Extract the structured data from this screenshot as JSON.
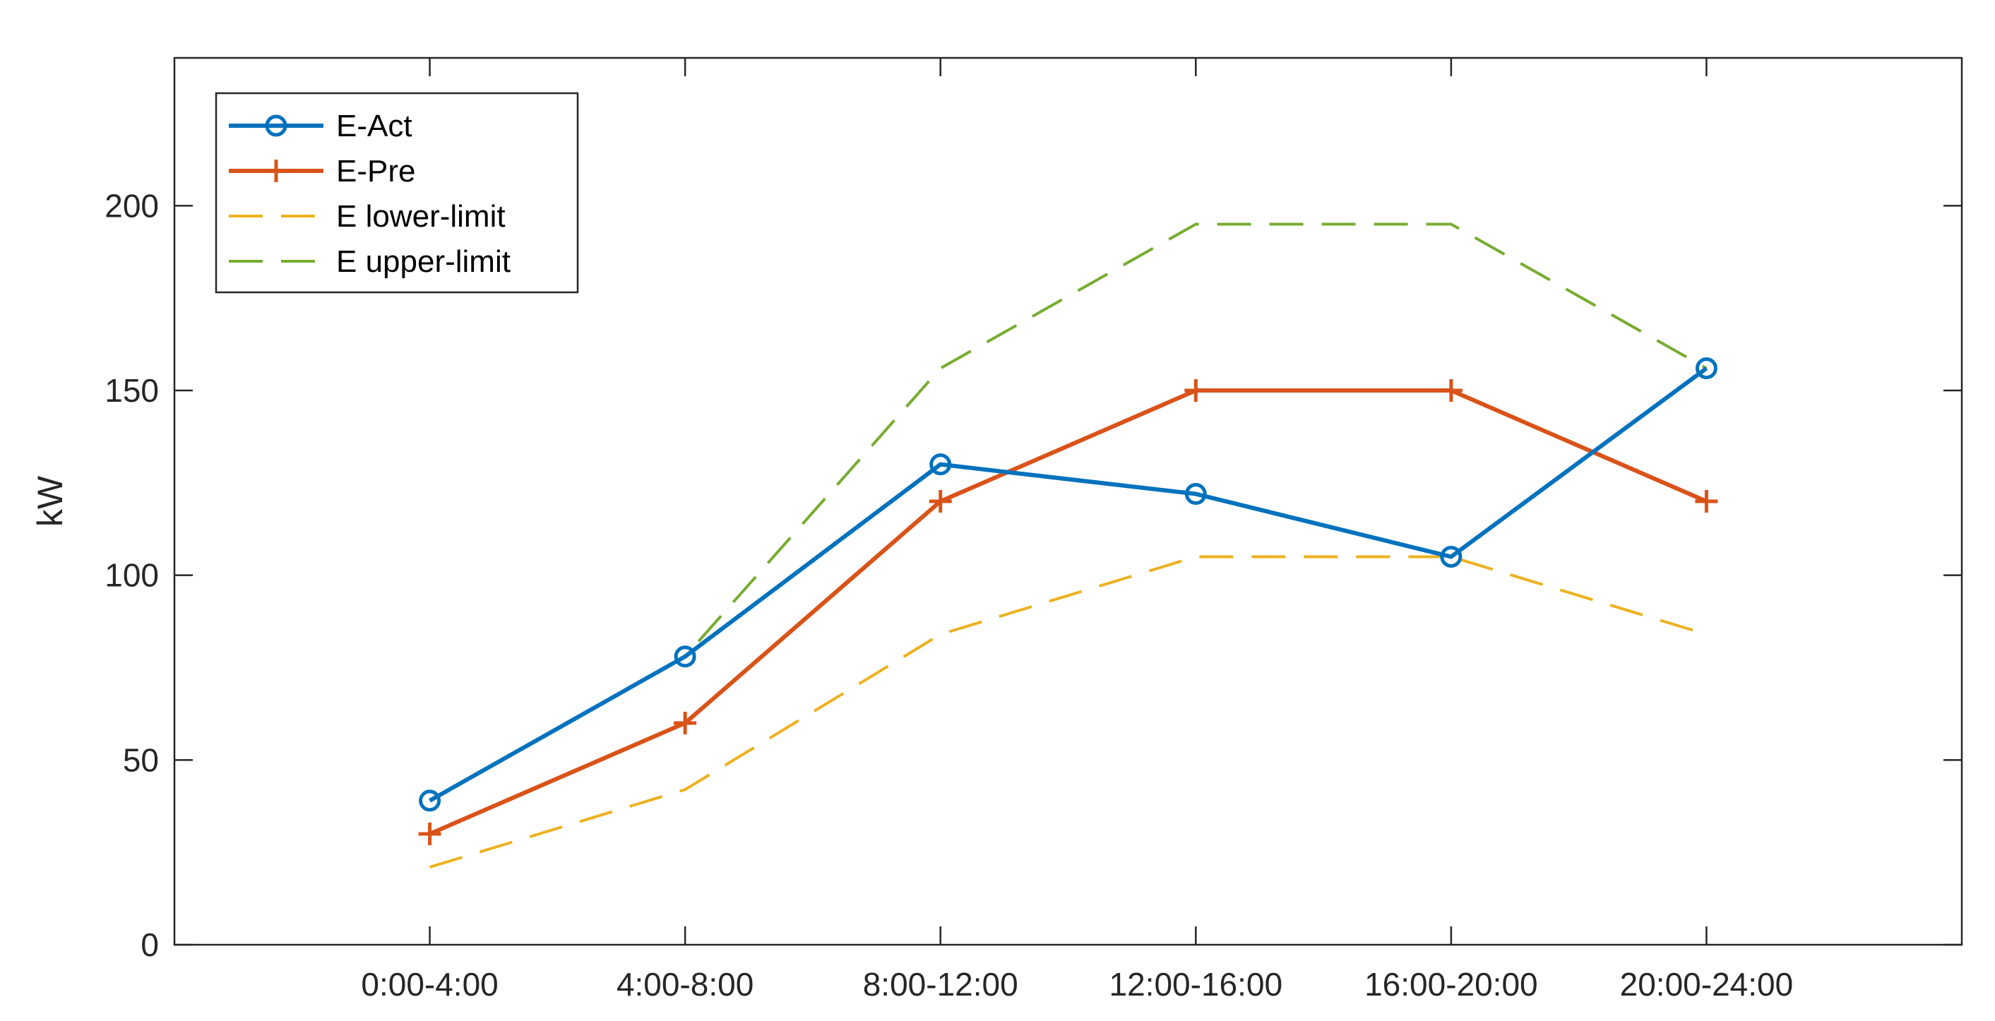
{
  "chart_data": {
    "type": "line",
    "title": "",
    "xlabel": "",
    "ylabel": "kW",
    "categories": [
      "0:00-4:00",
      "4:00-8:00",
      "8:00-12:00",
      "12:00-16:00",
      "16:00-20:00",
      "20:00-24:00"
    ],
    "xlim": [
      0,
      7
    ],
    "ylim": [
      0,
      240
    ],
    "yticks": [
      0,
      50,
      100,
      150,
      200
    ],
    "grid": false,
    "legend": {
      "position": "top-left"
    },
    "series": [
      {
        "name": "E-Act",
        "values": [
          39,
          78,
          130,
          122,
          105,
          156
        ],
        "color": "#0072BD",
        "style": "solid",
        "marker": "circle"
      },
      {
        "name": "E-Pre",
        "values": [
          30,
          60,
          120,
          150,
          150,
          120
        ],
        "color": "#D95319",
        "style": "solid",
        "marker": "plus"
      },
      {
        "name": "E lower-limit",
        "values": [
          21,
          42,
          84,
          105,
          105,
          84
        ],
        "color": "#EDB120",
        "style": "dashed",
        "marker": "none"
      },
      {
        "name": "E upper-limit",
        "values": [
          39,
          78,
          156,
          195,
          195,
          156
        ],
        "color": "#77AC30",
        "style": "dashed",
        "marker": "none"
      }
    ]
  }
}
